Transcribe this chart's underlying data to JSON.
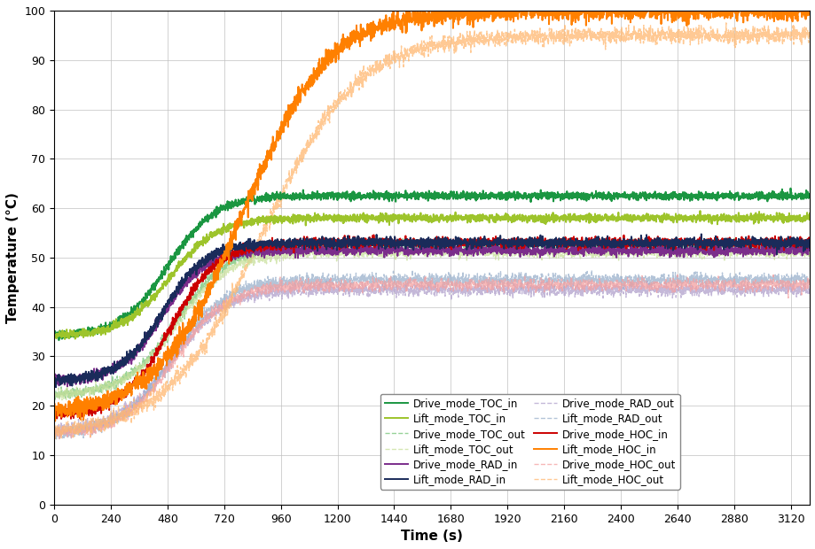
{
  "title": "",
  "xlabel": "Time (s)",
  "ylabel": "Temperature (°C)",
  "xlim": [
    0,
    3200
  ],
  "ylim": [
    0,
    100
  ],
  "xticks": [
    0,
    240,
    480,
    720,
    960,
    1200,
    1440,
    1680,
    1920,
    2160,
    2400,
    2640,
    2880,
    3120
  ],
  "yticks": [
    0,
    10,
    20,
    30,
    40,
    50,
    60,
    70,
    80,
    90,
    100
  ],
  "series": [
    {
      "name": "Drive_mode_TOC_in",
      "color": "#1a9641",
      "linestyle": "solid",
      "lw": 1.4
    },
    {
      "name": "Drive_mode_TOC_out",
      "color": "#74c476",
      "linestyle": "dashed",
      "lw": 1.0
    },
    {
      "name": "Drive_mode_RAD_in",
      "color": "#7b2d8b",
      "linestyle": "solid",
      "lw": 1.4
    },
    {
      "name": "Drive_mode_RAD_out",
      "color": "#b0a0cc",
      "linestyle": "dashed",
      "lw": 1.0
    },
    {
      "name": "Drive_mode_HOC_in",
      "color": "#cc0000",
      "linestyle": "solid",
      "lw": 1.4
    },
    {
      "name": "Drive_mode_HOC_out",
      "color": "#f4a0a0",
      "linestyle": "dashed",
      "lw": 1.0
    },
    {
      "name": "Lift_mode_TOC_in",
      "color": "#9dc42b",
      "linestyle": "solid",
      "lw": 1.4
    },
    {
      "name": "Lift_mode_TOC_out",
      "color": "#c8e09a",
      "linestyle": "dashed",
      "lw": 1.0
    },
    {
      "name": "Lift_mode_RAD_in",
      "color": "#1a2b5a",
      "linestyle": "solid",
      "lw": 1.4
    },
    {
      "name": "Lift_mode_RAD_out",
      "color": "#9ab0cc",
      "linestyle": "dashed",
      "lw": 1.0
    },
    {
      "name": "Lift_mode_HOC_in",
      "color": "#ff8000",
      "linestyle": "solid",
      "lw": 1.4
    },
    {
      "name": "Lift_mode_HOC_out",
      "color": "#ffb870",
      "linestyle": "dashed",
      "lw": 1.0
    }
  ],
  "legend_fontsize": 8.5,
  "axis_fontsize": 11,
  "tick_fontsize": 9
}
